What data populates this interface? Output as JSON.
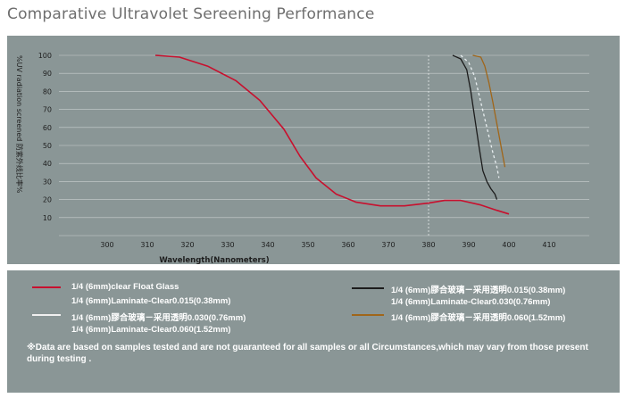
{
  "page": {
    "title": "Comparative Ultravolet Sereening Performance"
  },
  "chart_data": {
    "type": "line",
    "xlabel": "Wavelength(Nanometers)",
    "ylabel": "%UV radiation screened 防紫外线比率%",
    "xlim": [
      290,
      420
    ],
    "ylim": [
      0,
      100
    ],
    "x_ticks": [
      300,
      310,
      320,
      330,
      340,
      350,
      360,
      370,
      380,
      390,
      400,
      410
    ],
    "y_ticks": [
      10,
      20,
      30,
      40,
      50,
      60,
      70,
      80,
      90,
      100
    ],
    "grid": "horizontal",
    "series": [
      {
        "name": "1/4 (6mm)clear Float Glass",
        "color": "#c8102e",
        "dash": "",
        "points": [
          [
            312,
            100
          ],
          [
            318,
            99
          ],
          [
            325,
            94
          ],
          [
            332,
            86
          ],
          [
            338,
            75
          ],
          [
            344,
            59
          ],
          [
            348,
            44
          ],
          [
            352,
            32
          ],
          [
            357,
            23
          ],
          [
            362,
            18.5
          ],
          [
            368,
            16.5
          ],
          [
            374,
            16.5
          ],
          [
            380,
            18
          ],
          [
            384,
            19.5
          ],
          [
            388,
            19.5
          ],
          [
            393,
            17
          ],
          [
            397,
            14
          ],
          [
            400,
            12
          ]
        ]
      },
      {
        "name": "1/4 (6mm)Laminate-Clear0.015(0.38mm)",
        "color": "#1c1c1c",
        "dash": "",
        "points": [
          [
            386,
            100
          ],
          [
            388,
            98
          ],
          [
            389.5,
            92
          ],
          [
            390.5,
            80
          ],
          [
            391.5,
            65
          ],
          [
            392.5,
            50
          ],
          [
            393.5,
            36
          ],
          [
            394.5,
            30
          ],
          [
            395.5,
            26
          ],
          [
            396.5,
            23
          ],
          [
            397,
            20
          ]
        ]
      },
      {
        "name": "1/4 (6mm)膠合玻璃－采用透明0.030(0.76mm)",
        "color": "#e8eef0",
        "dash": "3 3",
        "points": [
          [
            388,
            100
          ],
          [
            390,
            96
          ],
          [
            391.5,
            88
          ],
          [
            393,
            74
          ],
          [
            394.5,
            60
          ],
          [
            396,
            46
          ],
          [
            397,
            38
          ],
          [
            397.5,
            32
          ]
        ]
      },
      {
        "name": "1/4 (6mm)膠合玻璃－采用透明0.060(1.52mm)",
        "color": "#a0661a",
        "dash": "",
        "points": [
          [
            391,
            100
          ],
          [
            393,
            99
          ],
          [
            394,
            94
          ],
          [
            395,
            85
          ],
          [
            396,
            74
          ],
          [
            397,
            62
          ],
          [
            398,
            50
          ],
          [
            399,
            38
          ]
        ]
      }
    ]
  },
  "legend": {
    "items": [
      {
        "label": "1/4 (6mm)clear Float Glass",
        "color": "#c8102e"
      },
      {
        "label": "1/4 (6mm)Laminate-Clear0.015(0.38mm)",
        "color": ""
      },
      {
        "label": "1/4 (6mm)膠合玻璃－采用透明0.030(0.76mm)",
        "color": "#f0f0f0"
      },
      {
        "label": "1/4 (6mm)Laminate-Clear0.060(1.52mm)",
        "color": ""
      },
      {
        "label": "1/4 (6mm)膠合玻璃－采用透明0.015(0.38mm)",
        "color": "#1c1c1c"
      },
      {
        "label": "1/4 (6mm)Laminate-Clear0.030(0.76mm)",
        "color": ""
      },
      {
        "label": "1/4 (6mm)膠合玻璃－采用透明0.060(1.52mm)",
        "color": "#a0661a"
      }
    ],
    "note": "※Data are based on samples tested and are not guaranteed for all samples or all  Circumstances,which may vary from those present during testing ."
  }
}
